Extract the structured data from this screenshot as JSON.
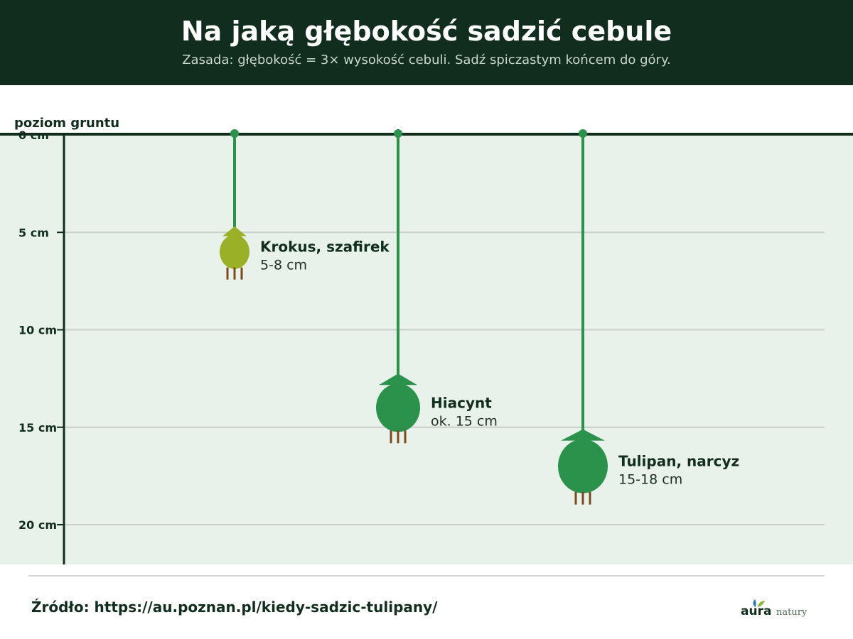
{
  "header": {
    "title": "Na jaką głębokość sadzić cebule",
    "subtitle": "Zasada: głębokość = 3× wysokość cebuli. Sadź spiczastym końcem do góry."
  },
  "diagram": {
    "ground_label": "poziom gruntu",
    "depth_ticks": [
      {
        "value": 0,
        "label": "0 cm"
      },
      {
        "value": 5,
        "label": "5 cm"
      },
      {
        "value": 10,
        "label": "10 cm"
      },
      {
        "value": 15,
        "label": "15 cm"
      },
      {
        "value": 20,
        "label": "20 cm"
      }
    ],
    "bulbs": [
      {
        "id": "krokus",
        "name": "Krokus, szafirek",
        "depth_label": "5-8 cm",
        "depth_cm": 6.0,
        "size": "small",
        "color": "#9ab026"
      },
      {
        "id": "hiacynt",
        "name": "Hiacynt",
        "depth_label": "ok. 15 cm",
        "depth_cm": 14.0,
        "size": "medium",
        "color": "#2b924c"
      },
      {
        "id": "tulipan",
        "name": "Tulipan, narcyz",
        "depth_label": "15-18 cm",
        "depth_cm": 17.0,
        "size": "large",
        "color": "#2b924c"
      }
    ],
    "colors": {
      "soil": "#e9f2ea",
      "ground_line": "#112d1e",
      "stem": "#2b924c",
      "roots": "#7a4a1c",
      "grid": "#c9cfcb"
    }
  },
  "footer": {
    "source": "Źródło: https://au.poznan.pl/kiedy-sadzic-tulipany/",
    "logo_text": "aura",
    "logo_subtext": "natury"
  }
}
